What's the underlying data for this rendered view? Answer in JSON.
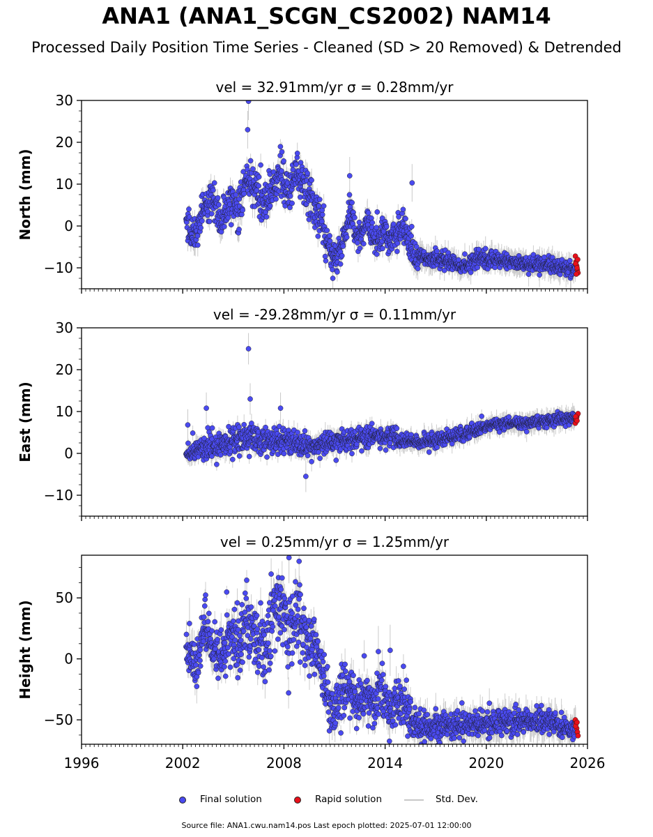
{
  "title": "ANA1 (ANA1_SCGN_CS2002) NAM14",
  "subtitle": "Processed Daily Position Time Series - Cleaned (SD > 20 Removed) & Detrended",
  "legend": {
    "final": "Final solution",
    "rapid": "Rapid solution",
    "std": "Std. Dev."
  },
  "footer": "Source file: ANA1.cwu.nam14.pos  Last epoch plotted: 2025-07-01 12:00:00",
  "colors": {
    "final": "#4a4af0",
    "rapid": "#e8101a",
    "std": "#c8c8c8",
    "marker_edge": "#1a1a1a"
  },
  "chart_data": [
    {
      "type": "scatter",
      "panel": "north",
      "title": "vel = 32.91mm/yr   σ = 0.28mm/yr",
      "ylabel": "North (mm)",
      "xlim": [
        1996,
        2026
      ],
      "ylim": [
        -15,
        30
      ],
      "yticks": [
        -10,
        0,
        10,
        20,
        30
      ],
      "ytick_labels": [
        "−10",
        "0",
        "10",
        "20",
        "30"
      ],
      "grid": false,
      "final_profile": [
        [
          2002.2,
          0
        ],
        [
          2002.8,
          -2
        ],
        [
          2003.3,
          4
        ],
        [
          2003.8,
          7
        ],
        [
          2004.3,
          1
        ],
        [
          2004.8,
          6
        ],
        [
          2005.3,
          4
        ],
        [
          2005.8,
          12
        ],
        [
          2006.3,
          9
        ],
        [
          2006.8,
          5
        ],
        [
          2007.3,
          8
        ],
        [
          2007.8,
          13
        ],
        [
          2008.3,
          8
        ],
        [
          2008.8,
          12
        ],
        [
          2009.3,
          9
        ],
        [
          2009.8,
          4
        ],
        [
          2010.3,
          0
        ],
        [
          2010.9,
          -8
        ],
        [
          2011.4,
          -6
        ],
        [
          2011.9,
          3
        ],
        [
          2012.4,
          -4
        ],
        [
          2012.9,
          2
        ],
        [
          2013.4,
          -4
        ],
        [
          2013.9,
          0
        ],
        [
          2014.4,
          -4
        ],
        [
          2014.9,
          0
        ],
        [
          2015.4,
          -3
        ],
        [
          2015.8,
          -7
        ],
        [
          2016.5,
          -8
        ],
        [
          2017.5,
          -8
        ],
        [
          2018.5,
          -9.5
        ],
        [
          2019.5,
          -8
        ],
        [
          2020.5,
          -8
        ],
        [
          2021.5,
          -8.5
        ],
        [
          2022.5,
          -9
        ],
        [
          2023.5,
          -9
        ],
        [
          2024.5,
          -10
        ],
        [
          2025.3,
          -10.5
        ]
      ],
      "final_amplitude": [
        [
          2002.2,
          3
        ],
        [
          2005.0,
          4.5
        ],
        [
          2007.0,
          5
        ],
        [
          2009.8,
          5
        ],
        [
          2010.6,
          3.5
        ],
        [
          2015.7,
          4.5
        ],
        [
          2016.0,
          1.8
        ],
        [
          2025.3,
          1.6
        ]
      ],
      "outliers": [
        {
          "x": 2005.9,
          "y": 29.8
        },
        {
          "x": 2005.85,
          "y": 23
        },
        {
          "x": 2011.9,
          "y": 12
        },
        {
          "x": 2010.9,
          "y": -12.5
        },
        {
          "x": 2015.6,
          "y": 10.3
        }
      ],
      "rapid": [
        {
          "x": 2025.28,
          "y": -7.2
        },
        {
          "x": 2025.32,
          "y": -8.5
        },
        {
          "x": 2025.36,
          "y": -9.5
        },
        {
          "x": 2025.4,
          "y": -10.5
        },
        {
          "x": 2025.44,
          "y": -11.2
        },
        {
          "x": 2025.3,
          "y": -9
        },
        {
          "x": 2025.38,
          "y": -10
        },
        {
          "x": 2025.34,
          "y": -11.5
        },
        {
          "x": 2025.42,
          "y": -8
        }
      ],
      "std_range": [
        1,
        3
      ]
    },
    {
      "type": "scatter",
      "panel": "east",
      "title": "vel = -29.28mm/yr   σ = 0.11mm/yr",
      "ylabel": "East (mm)",
      "xlim": [
        1996,
        2026
      ],
      "ylim": [
        -15,
        30
      ],
      "yticks": [
        -10,
        0,
        10,
        20,
        30
      ],
      "ytick_labels": [
        "−10",
        "0",
        "10",
        "20",
        "30"
      ],
      "grid": false,
      "final_profile": [
        [
          2002.2,
          0
        ],
        [
          2003.0,
          1
        ],
        [
          2004.0,
          2
        ],
        [
          2005.0,
          3
        ],
        [
          2006.0,
          4
        ],
        [
          2007.0,
          3
        ],
        [
          2008.0,
          3
        ],
        [
          2009.0,
          2
        ],
        [
          2010.0,
          2
        ],
        [
          2011.0,
          3
        ],
        [
          2012.0,
          3
        ],
        [
          2013.0,
          4
        ],
        [
          2014.0,
          4
        ],
        [
          2015.0,
          3
        ],
        [
          2016.0,
          2.5
        ],
        [
          2017.0,
          3
        ],
        [
          2018.0,
          4
        ],
        [
          2019.0,
          5
        ],
        [
          2020.0,
          6.5
        ],
        [
          2021.0,
          7.5
        ],
        [
          2022.0,
          7
        ],
        [
          2023.0,
          7.5
        ],
        [
          2024.0,
          8
        ],
        [
          2025.3,
          8.5
        ]
      ],
      "final_amplitude": [
        [
          2002.2,
          2
        ],
        [
          2004.0,
          3
        ],
        [
          2008.0,
          3
        ],
        [
          2010.0,
          2.5
        ],
        [
          2014.0,
          2.5
        ],
        [
          2015.5,
          1.5
        ],
        [
          2025.3,
          1.3
        ]
      ],
      "outliers": [
        {
          "x": 2005.9,
          "y": 25
        },
        {
          "x": 2006.0,
          "y": 13
        },
        {
          "x": 2002.3,
          "y": 6.8
        },
        {
          "x": 2003.4,
          "y": 10.8
        },
        {
          "x": 2007.8,
          "y": 10.8
        },
        {
          "x": 2009.3,
          "y": -5.5
        }
      ],
      "rapid": [
        {
          "x": 2025.28,
          "y": 7.2
        },
        {
          "x": 2025.32,
          "y": 8
        },
        {
          "x": 2025.36,
          "y": 8.6
        },
        {
          "x": 2025.4,
          "y": 9.2
        },
        {
          "x": 2025.44,
          "y": 9.5
        },
        {
          "x": 2025.3,
          "y": 8.8
        },
        {
          "x": 2025.38,
          "y": 7.8
        }
      ],
      "std_range": [
        0.8,
        2.5
      ]
    },
    {
      "type": "scatter",
      "panel": "height",
      "title": "vel = 0.25mm/yr   σ = 1.25mm/yr",
      "ylabel": "Height (mm)",
      "xlim": [
        1996,
        2026
      ],
      "ylim": [
        -70,
        85
      ],
      "xticks": [
        1996,
        2002,
        2008,
        2014,
        2020,
        2026
      ],
      "xtick_labels": [
        "1996",
        "2002",
        "2008",
        "2014",
        "2020",
        "2026"
      ],
      "yticks": [
        -50,
        0,
        50
      ],
      "ytick_labels": [
        "−50",
        "0",
        "50"
      ],
      "grid": false,
      "final_profile": [
        [
          2002.2,
          5
        ],
        [
          2002.8,
          -10
        ],
        [
          2003.3,
          30
        ],
        [
          2003.8,
          10
        ],
        [
          2004.3,
          0
        ],
        [
          2004.8,
          30
        ],
        [
          2005.3,
          5
        ],
        [
          2005.8,
          35
        ],
        [
          2006.3,
          15
        ],
        [
          2006.8,
          0
        ],
        [
          2007.3,
          30
        ],
        [
          2007.8,
          40
        ],
        [
          2008.3,
          20
        ],
        [
          2008.8,
          45
        ],
        [
          2009.3,
          20
        ],
        [
          2009.8,
          10
        ],
        [
          2010.3,
          -10
        ],
        [
          2010.8,
          -45
        ],
        [
          2011.3,
          -30
        ],
        [
          2011.8,
          -20
        ],
        [
          2012.3,
          -40
        ],
        [
          2012.8,
          -25
        ],
        [
          2013.3,
          -40
        ],
        [
          2013.8,
          -25
        ],
        [
          2014.3,
          -45
        ],
        [
          2014.8,
          -30
        ],
        [
          2015.3,
          -45
        ],
        [
          2015.8,
          -55
        ],
        [
          2016.5,
          -55
        ],
        [
          2017.5,
          -55
        ],
        [
          2018.5,
          -55
        ],
        [
          2019.5,
          -55
        ],
        [
          2020.5,
          -52
        ],
        [
          2021.5,
          -52
        ],
        [
          2022.5,
          -50
        ],
        [
          2023.5,
          -52
        ],
        [
          2024.5,
          -55
        ],
        [
          2025.3,
          -58
        ]
      ],
      "final_amplitude": [
        [
          2002.2,
          15
        ],
        [
          2005.0,
          25
        ],
        [
          2008.5,
          30
        ],
        [
          2010.0,
          20
        ],
        [
          2015.5,
          20
        ],
        [
          2016.0,
          10
        ],
        [
          2025.3,
          9
        ]
      ],
      "outliers": [
        {
          "x": 2008.3,
          "y": 83
        },
        {
          "x": 2008.9,
          "y": 80
        },
        {
          "x": 2013.6,
          "y": 6
        },
        {
          "x": 2014.3,
          "y": 7
        },
        {
          "x": 2002.4,
          "y": 29
        }
      ],
      "rapid": [
        {
          "x": 2025.28,
          "y": -50
        },
        {
          "x": 2025.32,
          "y": -53
        },
        {
          "x": 2025.36,
          "y": -57
        },
        {
          "x": 2025.4,
          "y": -60
        },
        {
          "x": 2025.44,
          "y": -63
        },
        {
          "x": 2025.3,
          "y": -55
        },
        {
          "x": 2025.38,
          "y": -52
        }
      ],
      "std_range": [
        4,
        14
      ]
    }
  ]
}
